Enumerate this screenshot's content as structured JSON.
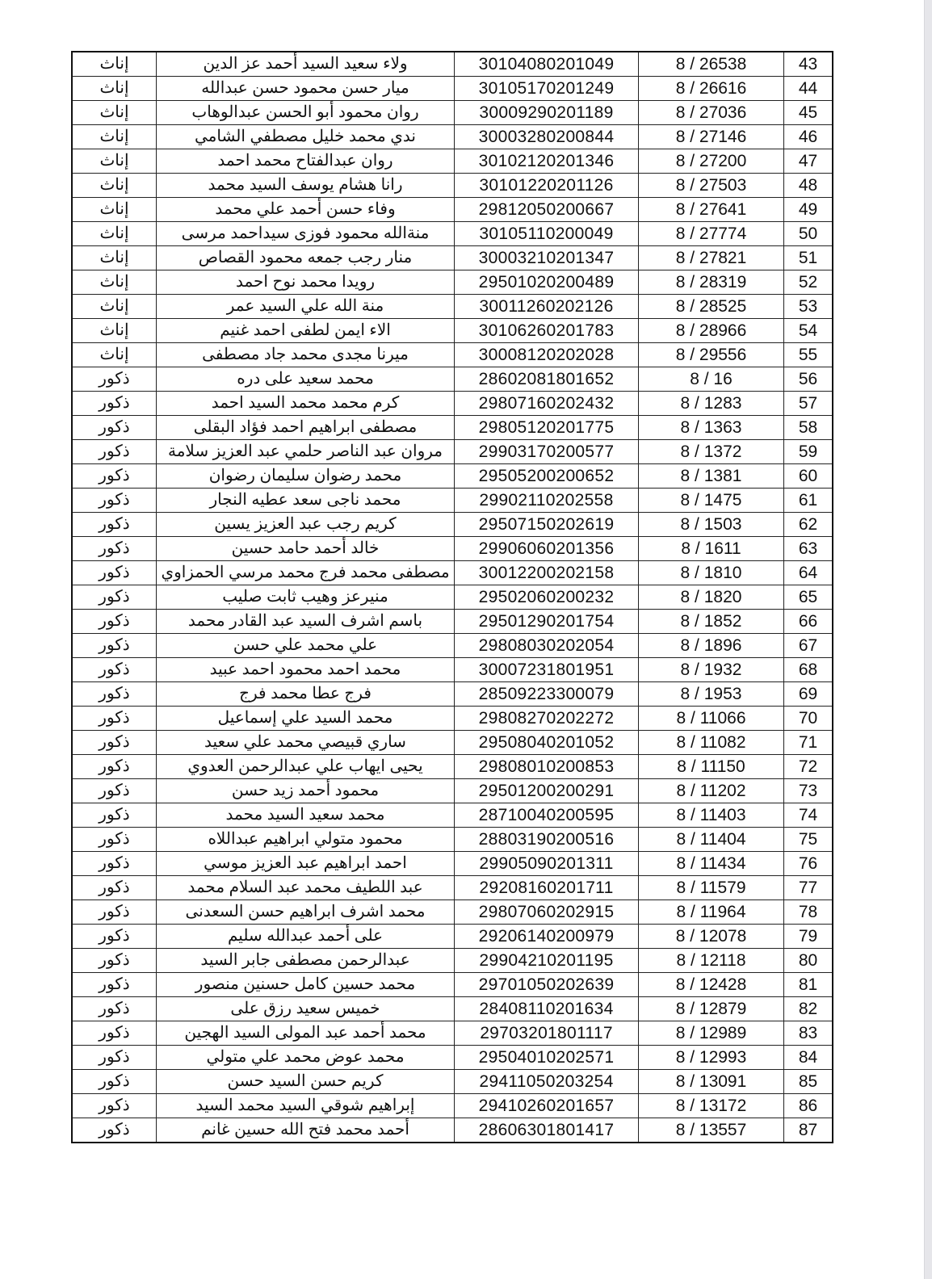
{
  "table": {
    "rows": [
      {
        "no": "43",
        "reg": "8 / 26538",
        "id": "30104080201049",
        "name": "ولاء سعيد السيد أحمد عز الدين",
        "gender": "إناث"
      },
      {
        "no": "44",
        "reg": "8 / 26616",
        "id": "30105170201249",
        "name": "ميار حسن محمود حسن عبدالله",
        "gender": "إناث"
      },
      {
        "no": "45",
        "reg": "8 / 27036",
        "id": "30009290201189",
        "name": "روان محمود أبو الحسن عبدالوهاب",
        "gender": "إناث"
      },
      {
        "no": "46",
        "reg": "8 / 27146",
        "id": "30003280200844",
        "name": "ندي محمد خليل مصطفي الشامي",
        "gender": "إناث"
      },
      {
        "no": "47",
        "reg": "8 / 27200",
        "id": "30102120201346",
        "name": "روان عبدالفتاح محمد احمد",
        "gender": "إناث"
      },
      {
        "no": "48",
        "reg": "8 / 27503",
        "id": "30101220201126",
        "name": "رانا هشام يوسف السيد محمد",
        "gender": "إناث"
      },
      {
        "no": "49",
        "reg": "8 / 27641",
        "id": "29812050200667",
        "name": "وفاء حسن أحمد علي محمد",
        "gender": "إناث"
      },
      {
        "no": "50",
        "reg": "8 / 27774",
        "id": "30105110200049",
        "name": "منةالله محمود فوزى سيداحمد مرسى",
        "gender": "إناث"
      },
      {
        "no": "51",
        "reg": "8 / 27821",
        "id": "30003210201347",
        "name": "منار رجب جمعه محمود القصاص",
        "gender": "إناث"
      },
      {
        "no": "52",
        "reg": "8 / 28319",
        "id": "29501020200489",
        "name": "رويدا محمد نوح احمد",
        "gender": "إناث"
      },
      {
        "no": "53",
        "reg": "8 / 28525",
        "id": "30011260202126",
        "name": "منة الله علي السيد عمر",
        "gender": "إناث"
      },
      {
        "no": "54",
        "reg": "8 / 28966",
        "id": "30106260201783",
        "name": "الاء ايمن لطفى احمد غنيم",
        "gender": "إناث"
      },
      {
        "no": "55",
        "reg": "8 / 29556",
        "id": "30008120202028",
        "name": "ميرنا مجدى محمد جاد مصطفى",
        "gender": "إناث"
      },
      {
        "no": "56",
        "reg": "8 / 16",
        "id": "28602081801652",
        "name": "محمد سعيد على دره",
        "gender": "ذكور"
      },
      {
        "no": "57",
        "reg": "8 / 1283",
        "id": "29807160202432",
        "name": "كرم محمد محمد السيد احمد",
        "gender": "ذكور"
      },
      {
        "no": "58",
        "reg": "8 / 1363",
        "id": "29805120201775",
        "name": "مصطفى ابراهيم احمد فؤاد البقلى",
        "gender": "ذكور"
      },
      {
        "no": "59",
        "reg": "8 / 1372",
        "id": "29903170200577",
        "name": "مروان عبد الناصر حلمي عبد العزيز سلامة",
        "gender": "ذكور"
      },
      {
        "no": "60",
        "reg": "8 / 1381",
        "id": "29505200200652",
        "name": "محمد رضوان سليمان رضوان",
        "gender": "ذكور"
      },
      {
        "no": "61",
        "reg": "8 / 1475",
        "id": "29902110202558",
        "name": "محمد ناجى سعد عطيه النجار",
        "gender": "ذكور"
      },
      {
        "no": "62",
        "reg": "8 / 1503",
        "id": "29507150202619",
        "name": "كريم رجب عبد العزيز يسين",
        "gender": "ذكور"
      },
      {
        "no": "63",
        "reg": "8 / 1611",
        "id": "29906060201356",
        "name": "خالد أحمد حامد حسين",
        "gender": "ذكور"
      },
      {
        "no": "64",
        "reg": "8 / 1810",
        "id": "30012200202158",
        "name": "مصطفى محمد فرج محمد مرسي الحمزاوي",
        "gender": "ذكور"
      },
      {
        "no": "65",
        "reg": "8 / 1820",
        "id": "29502060200232",
        "name": "منيرعز وهيب ثابت صليب",
        "gender": "ذكور"
      },
      {
        "no": "66",
        "reg": "8 / 1852",
        "id": "29501290201754",
        "name": "باسم اشرف السيد عبد القادر محمد",
        "gender": "ذكور"
      },
      {
        "no": "67",
        "reg": "8 / 1896",
        "id": "29808030202054",
        "name": "علي محمد علي حسن",
        "gender": "ذكور"
      },
      {
        "no": "68",
        "reg": "8 / 1932",
        "id": "30007231801951",
        "name": "محمد احمد محمود احمد عبيد",
        "gender": "ذكور"
      },
      {
        "no": "69",
        "reg": "8 / 1953",
        "id": "28509223300079",
        "name": "فرج عطا محمد فرج",
        "gender": "ذكور"
      },
      {
        "no": "70",
        "reg": "8 / 11066",
        "id": "29808270202272",
        "name": "محمد السيد علي إسماعيل",
        "gender": "ذكور"
      },
      {
        "no": "71",
        "reg": "8 / 11082",
        "id": "29508040201052",
        "name": "ساري قبيصي محمد علي سعيد",
        "gender": "ذكور"
      },
      {
        "no": "72",
        "reg": "8 / 11150",
        "id": "29808010200853",
        "name": "يحيى ايهاب علي عبدالرحمن العدوي",
        "gender": "ذكور"
      },
      {
        "no": "73",
        "reg": "8 / 11202",
        "id": "29501200200291",
        "name": "محمود أحمد زيد حسن",
        "gender": "ذكور"
      },
      {
        "no": "74",
        "reg": "8 / 11403",
        "id": "28710040200595",
        "name": "محمد سعيد السيد محمد",
        "gender": "ذكور"
      },
      {
        "no": "75",
        "reg": "8 / 11404",
        "id": "28803190200516",
        "name": "محمود متولي ابراهيم عبداللاه",
        "gender": "ذكور"
      },
      {
        "no": "76",
        "reg": "8 / 11434",
        "id": "29905090201311",
        "name": "احمد ابراهيم عبد العزيز موسي",
        "gender": "ذكور"
      },
      {
        "no": "77",
        "reg": "8 / 11579",
        "id": "29208160201711",
        "name": "عبد اللطيف محمد عبد السلام محمد",
        "gender": "ذكور"
      },
      {
        "no": "78",
        "reg": "8 / 11964",
        "id": "29807060202915",
        "name": "محمد اشرف ابراهيم حسن السعدنى",
        "gender": "ذكور"
      },
      {
        "no": "79",
        "reg": "8 / 12078",
        "id": "29206140200979",
        "name": "على أحمد عبدالله سليم",
        "gender": "ذكور"
      },
      {
        "no": "80",
        "reg": "8 / 12118",
        "id": "29904210201195",
        "name": "عبدالرحمن مصطفى جابر السيد",
        "gender": "ذكور"
      },
      {
        "no": "81",
        "reg": "8 / 12428",
        "id": "29701050202639",
        "name": "محمد حسين كامل حسنين منصور",
        "gender": "ذكور"
      },
      {
        "no": "82",
        "reg": "8 / 12879",
        "id": "28408110201634",
        "name": "خميس سعيد رزق على",
        "gender": "ذكور"
      },
      {
        "no": "83",
        "reg": "8 / 12989",
        "id": "29703201801117",
        "name": "محمد أحمد عبد المولى السيد الهجين",
        "gender": "ذكور"
      },
      {
        "no": "84",
        "reg": "8 / 12993",
        "id": "29504010202571",
        "name": "محمد عوض محمد علي متولي",
        "gender": "ذكور"
      },
      {
        "no": "85",
        "reg": "8 / 13091",
        "id": "29411050203254",
        "name": "كريم حسن السيد حسن",
        "gender": "ذكور"
      },
      {
        "no": "86",
        "reg": "8 / 13172",
        "id": "29410260201657",
        "name": "إبراهيم شوقي السيد محمد السيد",
        "gender": "ذكور"
      },
      {
        "no": "87",
        "reg": "8 / 13557",
        "id": "28606301801417",
        "name": "أحمد محمد فتح الله حسين غانم",
        "gender": "ذكور"
      }
    ]
  }
}
